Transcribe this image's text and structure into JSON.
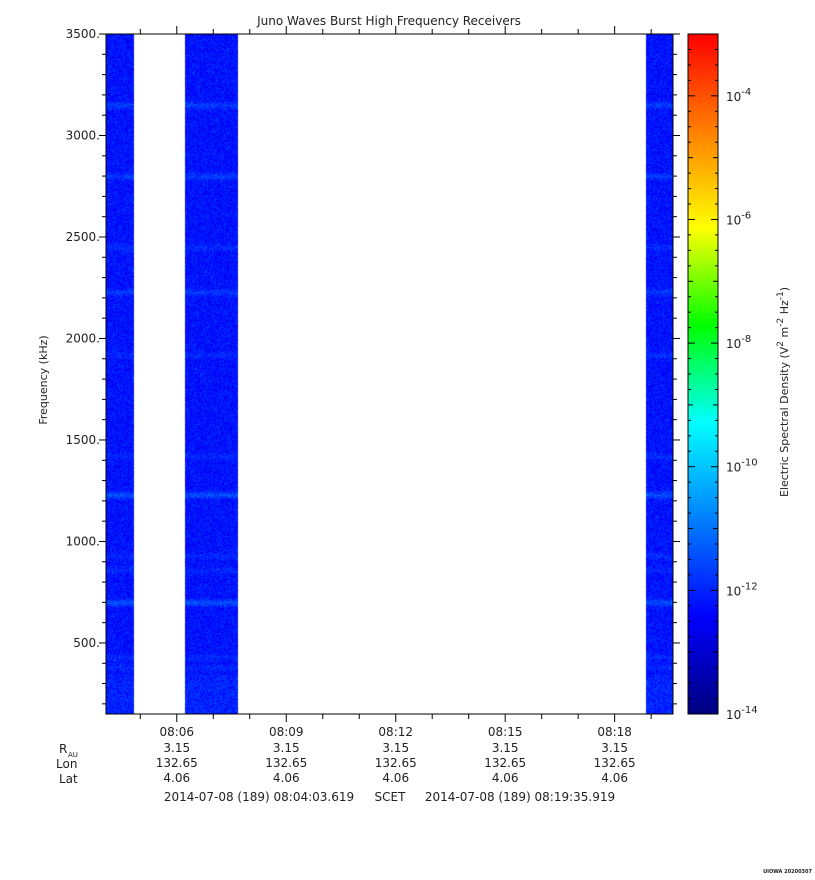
{
  "chart_data": {
    "type": "heatmap",
    "title": "Juno Waves Burst High Frequency Receivers",
    "ylabel": "Frequency (kHz)",
    "y_scale": "linear",
    "ylim": [
      150,
      3500
    ],
    "y_ticks": [
      {
        "value": 500,
        "label": "500."
      },
      {
        "value": 1000,
        "label": "1000."
      },
      {
        "value": 1500,
        "label": "1500."
      },
      {
        "value": 2000,
        "label": "2000."
      },
      {
        "value": 2500,
        "label": "2500."
      },
      {
        "value": 3000,
        "label": "3000."
      },
      {
        "value": 3500,
        "label": "3500."
      }
    ],
    "x_axis": {
      "start": "2014-07-08 08:04:03.619",
      "end": "2014-07-08 08:19:35.919",
      "ticks": [
        "08:06",
        "08:09",
        "08:12",
        "08:15",
        "08:18"
      ]
    },
    "data_segments": [
      {
        "start": "08:04:03",
        "end": "08:04:49"
      },
      {
        "start": "08:06:13",
        "end": "08:07:40"
      },
      {
        "start": "08:18:50",
        "end": "08:19:35"
      }
    ],
    "emission_bands_khz": [
      {
        "freq": 3150,
        "intensity": "moderate"
      },
      {
        "freq": 2800,
        "intensity": "moderate"
      },
      {
        "freq": 2450,
        "intensity": "weak"
      },
      {
        "freq": 2230,
        "intensity": "moderate"
      },
      {
        "freq": 1920,
        "intensity": "weak"
      },
      {
        "freq": 1420,
        "intensity": "weak"
      },
      {
        "freq": 1230,
        "intensity": "strong"
      },
      {
        "freq": 930,
        "intensity": "weak"
      },
      {
        "freq": 860,
        "intensity": "weak"
      },
      {
        "freq": 700,
        "intensity": "strong"
      },
      {
        "freq": 430,
        "intensity": "weak"
      },
      {
        "freq": 380,
        "intensity": "weak"
      }
    ],
    "background_level_exp": -12,
    "colorbar": {
      "label_prefix": "Electric Spectral Density (V",
      "label_mid": " m",
      "label_mid2": " Hz",
      "label_suffix": ")",
      "label_sup1": "2",
      "label_sup2": "-2",
      "label_sup3": "-1",
      "scale": "log",
      "range_exp": [
        -14,
        -3
      ],
      "tick_base": "10",
      "ticks_exp": [
        {
          "exp": -4,
          "label": "-4"
        },
        {
          "exp": -6,
          "label": "-6"
        },
        {
          "exp": -8,
          "label": "-8"
        },
        {
          "exp": -10,
          "label": "-10"
        },
        {
          "exp": -12,
          "label": "-12"
        },
        {
          "exp": -14,
          "label": "-14"
        }
      ],
      "colormap": [
        "#00007f",
        "#0000ff",
        "#007fff",
        "#00ffff",
        "#00ff00",
        "#ffff00",
        "#ff7f00",
        "#ff0000"
      ]
    },
    "ephemeris": {
      "row_labels": {
        "r_main": "R",
        "r_sub": "AU",
        "lon": "Lon",
        "lat": "Lat"
      },
      "columns": [
        {
          "r": "3.15",
          "lon": "132.65",
          "lat": "4.06"
        },
        {
          "r": "3.15",
          "lon": "132.65",
          "lat": "4.06"
        },
        {
          "r": "3.15",
          "lon": "132.65",
          "lat": "4.06"
        },
        {
          "r": "3.15",
          "lon": "132.65",
          "lat": "4.06"
        },
        {
          "r": "3.15",
          "lon": "132.65",
          "lat": "4.06"
        }
      ]
    },
    "time_range": {
      "start_label": "2014-07-08 (189) 08:04:03.619",
      "mid_label": "SCET",
      "end_label": "2014-07-08 (189) 08:19:35.919"
    },
    "footer": "UIOWA 20200307"
  }
}
